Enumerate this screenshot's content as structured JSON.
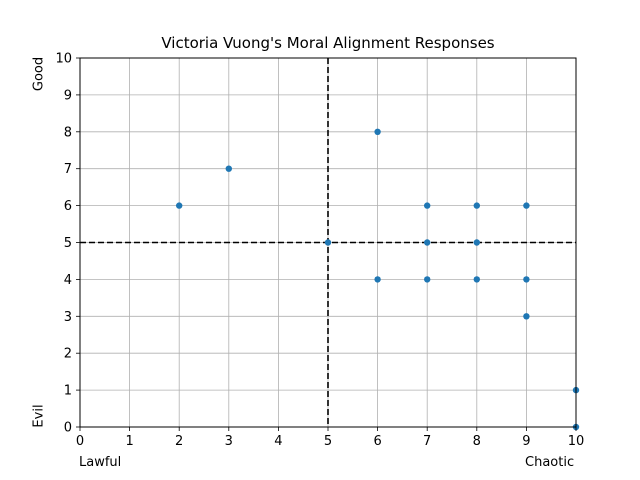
{
  "chart_data": {
    "type": "scatter",
    "title": "Victoria Vuong's Moral Alignment Responses",
    "xlabel": "",
    "ylabel": "",
    "xlim": [
      0,
      10
    ],
    "ylim": [
      0,
      10
    ],
    "xticks": [
      "0",
      "1",
      "2",
      "3",
      "4",
      "5",
      "6",
      "7",
      "8",
      "9",
      "10"
    ],
    "yticks": [
      "0",
      "1",
      "2",
      "3",
      "4",
      "5",
      "6",
      "7",
      "8",
      "9",
      "10"
    ],
    "grid": true,
    "corner_labels": {
      "x_low": "Lawful",
      "x_high": "Chaotic",
      "y_high": "Good",
      "y_low": "Evil"
    },
    "reference_lines": {
      "vertical_x": 5,
      "horizontal_y": 5,
      "style": "dashed",
      "color": "#000000"
    },
    "marker_color": "#1f77b4",
    "points": [
      {
        "x": 2,
        "y": 6
      },
      {
        "x": 3,
        "y": 7
      },
      {
        "x": 5,
        "y": 5
      },
      {
        "x": 6,
        "y": 8
      },
      {
        "x": 6,
        "y": 4
      },
      {
        "x": 7,
        "y": 6
      },
      {
        "x": 7,
        "y": 5
      },
      {
        "x": 7,
        "y": 4
      },
      {
        "x": 8,
        "y": 6
      },
      {
        "x": 8,
        "y": 5
      },
      {
        "x": 8,
        "y": 4
      },
      {
        "x": 9,
        "y": 6
      },
      {
        "x": 9,
        "y": 4
      },
      {
        "x": 9,
        "y": 3
      },
      {
        "x": 10,
        "y": 1
      },
      {
        "x": 10,
        "y": 0
      }
    ]
  }
}
